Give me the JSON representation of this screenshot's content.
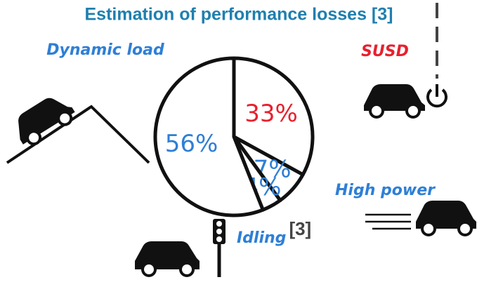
{
  "chart_data": {
    "type": "pie",
    "title": "Estimation of performance losses [3]",
    "categories": [
      "SUSD",
      "High power",
      "Idling",
      "Dynamic load"
    ],
    "values": [
      33,
      7,
      4,
      56
    ],
    "value_labels": [
      "33%",
      "7%",
      "4%",
      "56%"
    ],
    "label_colors": [
      "#e8202e",
      "#2e7fd6",
      "#2e7fd6",
      "#2e7fd6"
    ],
    "annotation": "[3]"
  }
}
